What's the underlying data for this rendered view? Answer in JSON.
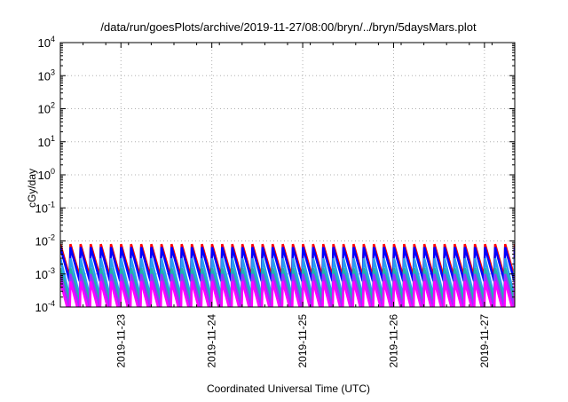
{
  "chart_data": {
    "type": "line",
    "title": "/data/run/goesPlots/archive/2019-11-27/08:00/bryn/../bryn/5daysMars.plot",
    "xlabel": "Coordinated Universal Time (UTC)",
    "ylabel": "cGy/day",
    "scale_y": "log",
    "ylim": [
      0.0001,
      10000
    ],
    "xlim": [
      "2019-11-22 08:00",
      "2019-11-27 08:00"
    ],
    "x_ticks": [
      "2019-11-23",
      "2019-11-24",
      "2019-11-25",
      "2019-11-26",
      "2019-11-27"
    ],
    "y_ticks": [
      {
        "value": 0.0001,
        "base": "10",
        "exp": "-4"
      },
      {
        "value": 0.001,
        "base": "10",
        "exp": "-3"
      },
      {
        "value": 0.01,
        "base": "10",
        "exp": "-2"
      },
      {
        "value": 0.1,
        "base": "10",
        "exp": "-1"
      },
      {
        "value": 1,
        "base": "10",
        "exp": "0"
      },
      {
        "value": 10,
        "base": "10",
        "exp": "1"
      },
      {
        "value": 100,
        "base": "10",
        "exp": "2"
      },
      {
        "value": 1000,
        "base": "10",
        "exp": "3"
      },
      {
        "value": 10000,
        "base": "10",
        "exp": "4"
      }
    ],
    "grid": true,
    "legend": "none",
    "sawtooth": {
      "start": "2019-11-22 08:00",
      "end": "2019-11-27 08:00",
      "period_hours": 2.67
    },
    "series": [
      {
        "color": "#ff0000",
        "peak": 0.008,
        "trough": 0.0008
      },
      {
        "color": "#0000ff",
        "peak": 0.0065,
        "trough": 0.0006
      },
      {
        "color": "#2a9df4",
        "peak": 0.003,
        "trough": 0.0002
      },
      {
        "color": "#20b2aa",
        "peak": 0.0015,
        "trough": 0.00015
      },
      {
        "color": "#9b30ff",
        "peak": 0.001,
        "trough": 9e-05
      },
      {
        "color": "#ff00ff",
        "peak": 0.0006,
        "trough": 5e-05
      }
    ]
  }
}
